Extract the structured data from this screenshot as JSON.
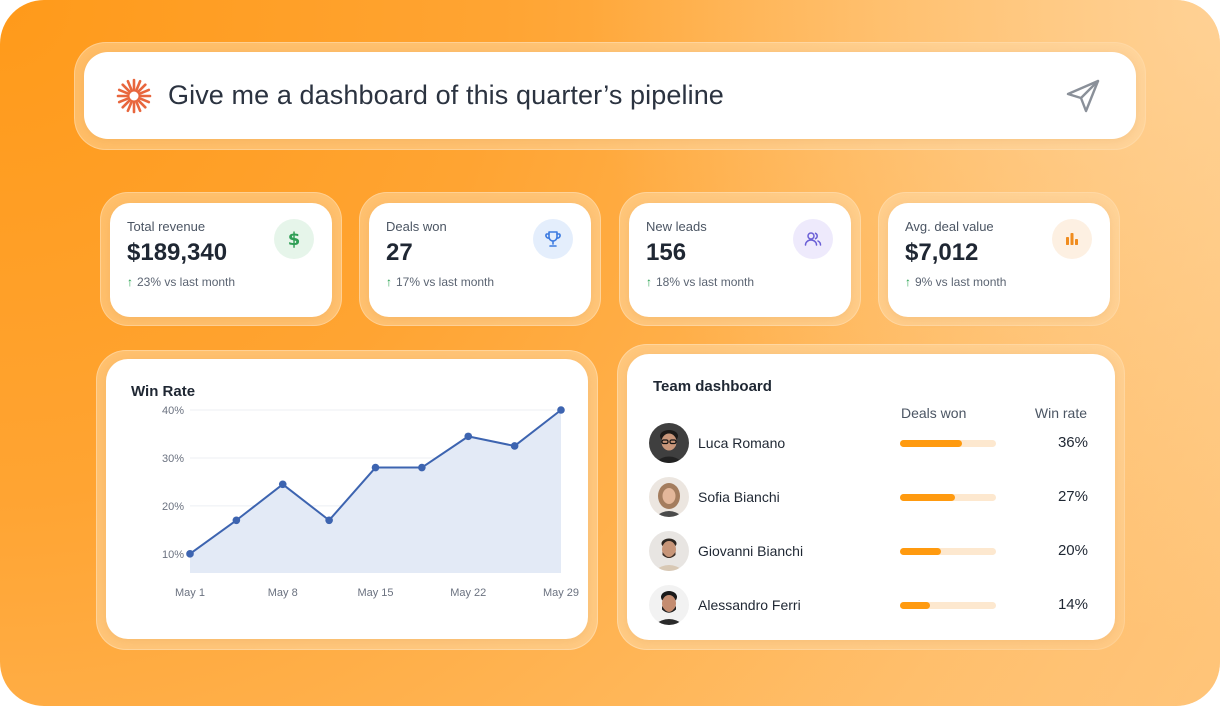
{
  "prompt": {
    "text": "Give me a dashboard of this quarter’s pipeline",
    "icon": "sparkle-icon",
    "send_icon": "send-icon",
    "accent": "#e8663d"
  },
  "stats": [
    {
      "label": "Total revenue",
      "value": "$189,340",
      "delta": "23% vs last month",
      "icon": "dollar-icon",
      "icon_bg": "#e6f5ea",
      "icon_color": "#2f9e55"
    },
    {
      "label": "Deals won",
      "value": "27",
      "delta": "17% vs last month",
      "icon": "trophy-icon",
      "icon_bg": "#e4eefc",
      "icon_color": "#3d7be0"
    },
    {
      "label": "New leads",
      "value": "156",
      "delta": "18% vs last month",
      "icon": "users-icon",
      "icon_bg": "#eeeafc",
      "icon_color": "#6a5fd6"
    },
    {
      "label": "Avg. deal value",
      "value": "$7,012",
      "delta": "9% vs last month",
      "icon": "bar-chart-icon",
      "icon_bg": "#fdf0e2",
      "icon_color": "#f08c1e"
    }
  ],
  "win_rate": {
    "title": "Win Rate",
    "chart_data": {
      "type": "area",
      "title": "Win Rate",
      "x_ticks": [
        "May 1",
        "May 8",
        "May 15",
        "May 22",
        "May 29"
      ],
      "y_ticks": [
        "10%",
        "20%",
        "30%",
        "40%"
      ],
      "ylim": [
        6,
        40
      ],
      "grid": true,
      "series": [
        {
          "values": [
            10,
            17,
            24.5,
            17,
            28,
            28,
            34.5,
            32.5,
            40
          ]
        }
      ],
      "line_color": "#3d64b0",
      "fill_color": "#e3eaf6"
    }
  },
  "team": {
    "title": "Team dashboard",
    "col_deals": "Deals won",
    "col_rate": "Win rate",
    "members": [
      {
        "name": "Luca Romano",
        "rate": "36%",
        "progress": 0.65
      },
      {
        "name": "Sofia Bianchi",
        "rate": "27%",
        "progress": 0.57
      },
      {
        "name": "Giovanni Bianchi",
        "rate": "20%",
        "progress": 0.43
      },
      {
        "name": "Alessandro Ferri",
        "rate": "14%",
        "progress": 0.31
      }
    ]
  }
}
